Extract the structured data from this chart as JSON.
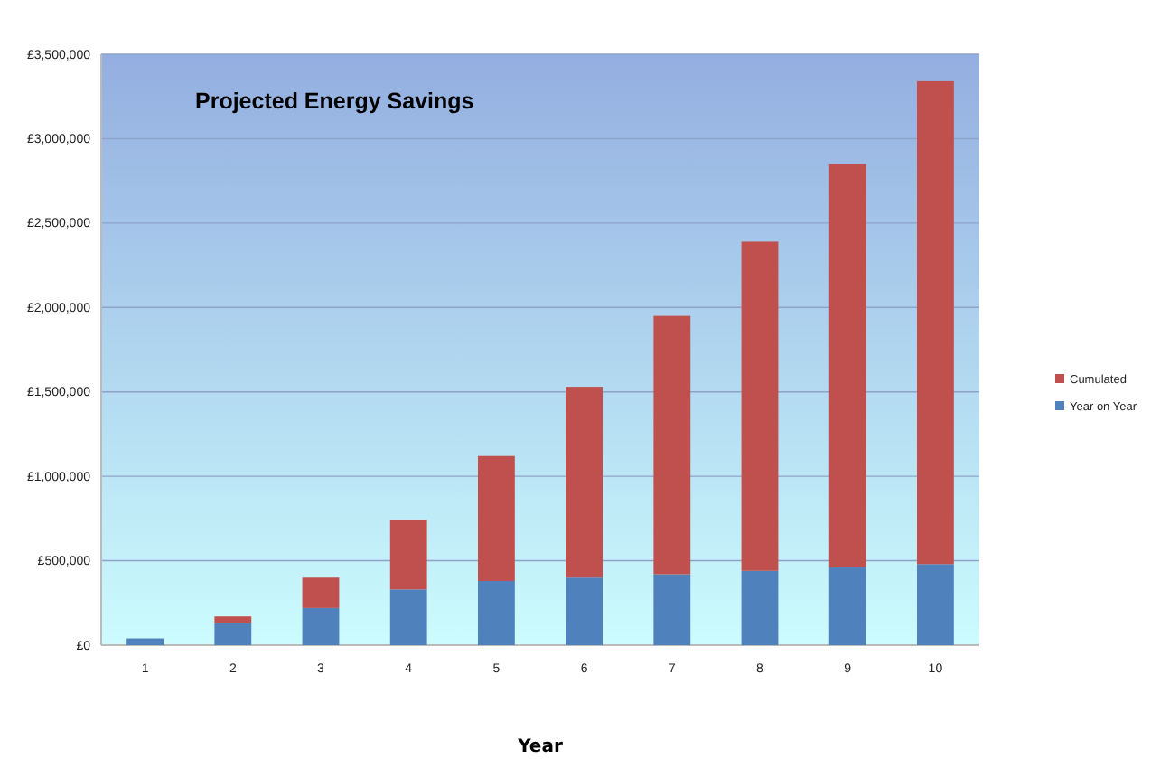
{
  "chart_data": {
    "type": "bar",
    "title": "Projected Energy Savings",
    "xlabel": "Year",
    "categories": [
      "1",
      "2",
      "3",
      "4",
      "5",
      "6",
      "7",
      "8",
      "9",
      "10"
    ],
    "stacked": true,
    "legend": "right",
    "grid": "y",
    "series": [
      {
        "name": "Year on Year",
        "color": "#4f81bd",
        "values": [
          40000,
          130000,
          220000,
          330000,
          380000,
          400000,
          420000,
          440000,
          460000,
          480000
        ]
      },
      {
        "name": "Cumulated",
        "color": "#c0504d",
        "values": [
          0,
          40000,
          180000,
          410000,
          740000,
          1130000,
          1530000,
          1950000,
          2390000,
          2860000
        ]
      }
    ],
    "ylim": [
      0,
      3500000
    ],
    "yticks": [
      {
        "value": 0,
        "label": "£0"
      },
      {
        "value": 500000,
        "label": "£500,000"
      },
      {
        "value": 1000000,
        "label": "£1,000,000"
      },
      {
        "value": 1500000,
        "label": "£1,500,000"
      },
      {
        "value": 2000000,
        "label": "£2,000,000"
      },
      {
        "value": 2500000,
        "label": "£2,500,000"
      },
      {
        "value": 3000000,
        "label": "£3,000,000"
      },
      {
        "value": 3500000,
        "label": "£3,500,000"
      }
    ]
  }
}
